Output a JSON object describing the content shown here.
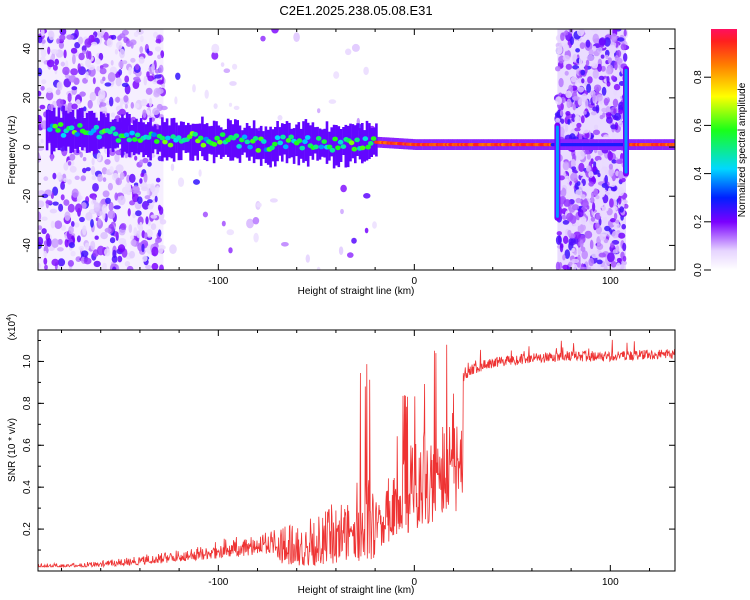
{
  "figure": {
    "title": "C2E1.2025.238.05.08.E31"
  },
  "chart_data": [
    {
      "type": "heatmap",
      "title": "C2E1.2025.238.05.08.E31",
      "xlabel": "Height of straight line (km)",
      "ylabel": "Frequency (Hz)",
      "xlim": [
        -192,
        133
      ],
      "ylim": [
        -50,
        48
      ],
      "x_ticks": [
        -100,
        0,
        100
      ],
      "x_tick_labels": [
        "-100",
        "0",
        "100"
      ],
      "y_ticks": [
        -40,
        -20,
        0,
        20,
        40
      ],
      "y_tick_labels": [
        "-40",
        "-20",
        "0",
        "20",
        "40"
      ],
      "colorbar": {
        "label": "Normalized spectral amplitude",
        "range": [
          0,
          1
        ],
        "ticks": [
          0.0,
          0.2,
          0.4,
          0.6,
          0.8
        ],
        "tick_labels": [
          "0.0",
          "0.2",
          "0.4",
          "0.6",
          "0.8"
        ],
        "colormap": "rainbow (white-violet-blue-cyan-green-yellow-red)"
      },
      "features": {
        "noisy_region_left_x": [
          -192,
          -128
        ],
        "noisy_region_right_x": [
          73,
          108
        ],
        "ridge": [
          {
            "x": -180,
            "f": 7
          },
          {
            "x": -160,
            "f": 6
          },
          {
            "x": -140,
            "f": 4
          },
          {
            "x": -120,
            "f": 3
          },
          {
            "x": -100,
            "f": 3
          },
          {
            "x": -80,
            "f": 1
          },
          {
            "x": -60,
            "f": 2
          },
          {
            "x": -40,
            "f": 1
          },
          {
            "x": -25,
            "f": 2
          },
          {
            "x": -20,
            "f": 2
          },
          {
            "x": 0,
            "f": 1
          },
          {
            "x": 20,
            "f": 1
          },
          {
            "x": 50,
            "f": 1
          },
          {
            "x": 70,
            "f": 1
          },
          {
            "x": 120,
            "f": 1
          },
          {
            "x": 133,
            "f": 1
          }
        ],
        "spikes": [
          {
            "x": 73,
            "f_range": [
              -30,
              10
            ]
          },
          {
            "x": 108,
            "f_range": [
              -12,
              33
            ]
          }
        ]
      },
      "grid": false
    },
    {
      "type": "line",
      "xlabel": "Height of straight line (km)",
      "ylabel": "SNR (10 * v/v)",
      "y_multiplier": "(x10^4)",
      "xlim": [
        -192,
        133
      ],
      "ylim": [
        0,
        1.15
      ],
      "x_ticks": [
        -100,
        0,
        100
      ],
      "x_tick_labels": [
        "-100",
        "0",
        "100"
      ],
      "y_ticks": [
        0.2,
        0.4,
        0.6,
        0.8,
        1.0
      ],
      "y_tick_labels": [
        "0.2",
        "0.4",
        "0.6",
        "0.8",
        "1.0"
      ],
      "color": "#ee3333",
      "envelope": [
        {
          "x": -192,
          "y": 0.04
        },
        {
          "x": -170,
          "y": 0.04
        },
        {
          "x": -150,
          "y": 0.06
        },
        {
          "x": -130,
          "y": 0.09
        },
        {
          "x": -110,
          "y": 0.13
        },
        {
          "x": -90,
          "y": 0.17
        },
        {
          "x": -70,
          "y": 0.22
        },
        {
          "x": -50,
          "y": 0.28
        },
        {
          "x": -40,
          "y": 0.33
        },
        {
          "x": -30,
          "y": 0.42
        },
        {
          "x": -25,
          "y": 0.55
        },
        {
          "x": -20,
          "y": 0.35
        },
        {
          "x": -15,
          "y": 0.42
        },
        {
          "x": -10,
          "y": 0.5
        },
        {
          "x": -5,
          "y": 0.58
        },
        {
          "x": 0,
          "y": 0.65
        },
        {
          "x": 5,
          "y": 0.72
        },
        {
          "x": 10,
          "y": 0.78
        },
        {
          "x": 15,
          "y": 0.85
        },
        {
          "x": 20,
          "y": 0.9
        },
        {
          "x": 25,
          "y": 0.95
        },
        {
          "x": 30,
          "y": 0.99
        },
        {
          "x": 40,
          "y": 1.02
        },
        {
          "x": 60,
          "y": 1.04
        },
        {
          "x": 80,
          "y": 1.05
        },
        {
          "x": 100,
          "y": 1.05
        },
        {
          "x": 133,
          "y": 1.06
        }
      ],
      "grid": false
    }
  ]
}
